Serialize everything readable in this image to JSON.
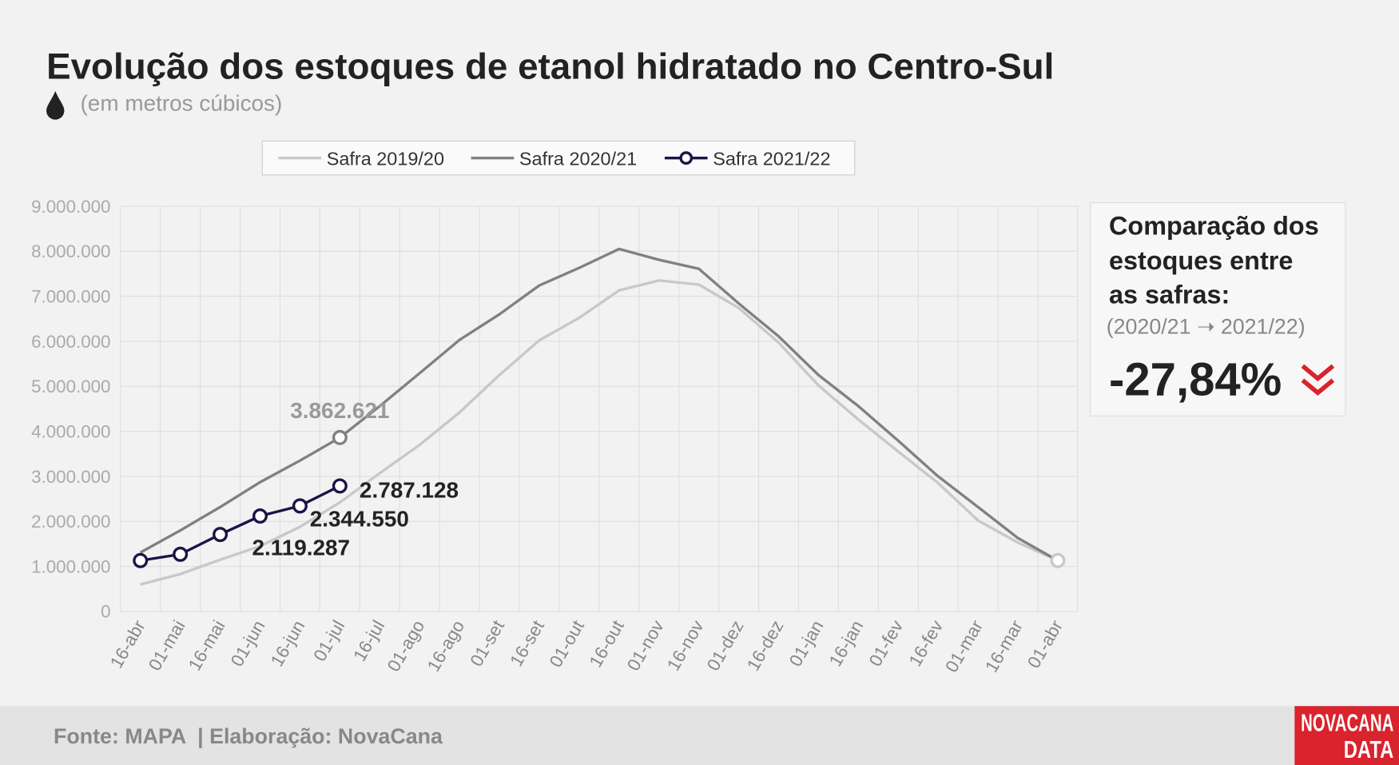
{
  "chart_data": {
    "type": "line",
    "title": "Evolução dos estoques de etanol hidratado no Centro-Sul",
    "subtitle": "(em metros cúbicos)",
    "categories": [
      "16-abr",
      "01-mai",
      "16-mai",
      "01-jun",
      "16-jun",
      "01-jul",
      "16-jul",
      "01-ago",
      "16-ago",
      "01-set",
      "16-set",
      "01-out",
      "16-out",
      "01-nov",
      "16-nov",
      "01-dez",
      "16-dez",
      "01-jan",
      "16-jan",
      "01-fev",
      "16-fev",
      "01-mar",
      "16-mar",
      "01-abr"
    ],
    "series": [
      {
        "name": "Safra 2019/20",
        "color": "#c8c8c8",
        "markers": [
          23
        ],
        "values": [
          600000,
          830000,
          1150000,
          1450000,
          1880000,
          2420000,
          3070000,
          3700000,
          4420000,
          5250000,
          6020000,
          6520000,
          7130000,
          7350000,
          7260000,
          6740000,
          5970000,
          5020000,
          4260000,
          3550000,
          2850000,
          2020000,
          1530000,
          1130000
        ]
      },
      {
        "name": "Safra 2020/21",
        "color": "#808080",
        "markers": [
          5
        ],
        "values": [
          1310000,
          1800000,
          2320000,
          2870000,
          3350000,
          3862621,
          4560000,
          5290000,
          6030000,
          6600000,
          7240000,
          7630000,
          8050000,
          7810000,
          7610000,
          6840000,
          6110000,
          5250000,
          4560000,
          3790000,
          3000000,
          2320000,
          1630000,
          1130000
        ],
        "value_labels": [
          null,
          null,
          null,
          null,
          null,
          "3.862.621",
          null,
          null,
          null,
          null,
          null,
          null,
          null,
          null,
          null,
          null,
          null,
          null,
          null,
          null,
          null,
          null,
          null,
          null
        ]
      },
      {
        "name": "Safra 2021/22",
        "color": "#1a1446",
        "markers": [
          0,
          1,
          2,
          3,
          4,
          5
        ],
        "values": [
          1130000,
          1270000,
          1710000,
          2119287,
          2344550,
          2787128,
          null,
          null,
          null,
          null,
          null,
          null,
          null,
          null,
          null,
          null,
          null,
          null,
          null,
          null,
          null,
          null,
          null,
          null
        ],
        "value_labels": [
          null,
          null,
          null,
          "2.119.287",
          "2.344.550",
          "2.787.128",
          null,
          null,
          null,
          null,
          null,
          null,
          null,
          null,
          null,
          null,
          null,
          null,
          null,
          null,
          null,
          null,
          null,
          null
        ]
      }
    ],
    "ylim": [
      0,
      9000000
    ],
    "yticks": [
      0,
      {
        "value": 1000000,
        "label": "1.000.000"
      },
      {
        "value": 2000000,
        "label": "2.000.000"
      },
      {
        "value": 3000000,
        "label": "3.000.000"
      },
      {
        "value": 4000000,
        "label": "4.000.000"
      },
      {
        "value": 5000000,
        "label": "5.000.000"
      },
      {
        "value": 6000000,
        "label": "6.000.000"
      },
      {
        "value": 7000000,
        "label": "7.000.000"
      },
      {
        "value": 8000000,
        "label": "8.000.000"
      },
      {
        "value": 9000000,
        "label": "9.000.000"
      }
    ],
    "grid": true,
    "legend": "top",
    "comparison": {
      "title_lines": [
        "Comparação dos",
        "estoques entre",
        "as safras:"
      ],
      "period": "(2020/21 ➝ 2021/22)",
      "change": "-27,84%"
    },
    "footer": "Fonte: MAPA  | Elaboração: NovaCana",
    "logo": [
      "NOVACANA",
      "DATA"
    ]
  }
}
